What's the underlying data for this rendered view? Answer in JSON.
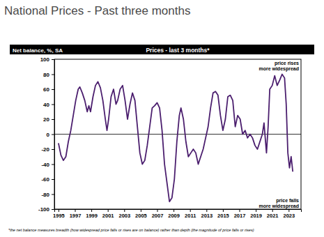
{
  "chart_data": {
    "type": "line",
    "heading": "National Prices - Past three months",
    "y_label": "Net balance, %, SA",
    "title": "Prices - last 3 months*",
    "annotations": [
      [
        "price rises",
        "more widespread"
      ],
      [
        "price falls",
        "more widespread"
      ]
    ],
    "footnote": "*the net balance measures breadth (how widespread price falls or rises are on balance) rather than depth (the magnitude of price falls or rises)",
    "color": "#4b1e6e",
    "grid": false,
    "xlim": [
      1994.5,
      2024.5
    ],
    "ylim": [
      -100,
      100
    ],
    "xticks": [
      1995,
      1997,
      1999,
      2001,
      2003,
      2005,
      2007,
      2009,
      2011,
      2013,
      2015,
      2017,
      2019,
      2021,
      2023
    ],
    "yticks": [
      -100,
      -80,
      -60,
      -40,
      -20,
      0,
      20,
      40,
      60,
      80,
      100
    ],
    "x": [
      1995.0,
      1995.3,
      1995.6,
      1995.9,
      1996.2,
      1996.5,
      1996.8,
      1997.1,
      1997.4,
      1997.6,
      1997.9,
      1998.2,
      1998.5,
      1998.7,
      1998.9,
      1999.2,
      1999.5,
      1999.8,
      2000.1,
      2000.4,
      2000.7,
      2000.9,
      2001.1,
      2001.4,
      2001.7,
      2002.0,
      2002.2,
      2002.5,
      2002.8,
      2003.1,
      2003.4,
      2003.7,
      2004.0,
      2004.3,
      2004.6,
      2004.9,
      2005.2,
      2005.5,
      2005.8,
      2006.1,
      2006.4,
      2006.7,
      2007.0,
      2007.3,
      2007.6,
      2007.9,
      2008.2,
      2008.5,
      2008.8,
      2009.1,
      2009.4,
      2009.7,
      2009.9,
      2010.2,
      2010.5,
      2010.8,
      2011.1,
      2011.4,
      2011.7,
      2012.0,
      2012.3,
      2012.6,
      2012.9,
      2013.2,
      2013.5,
      2013.8,
      2014.1,
      2014.4,
      2014.7,
      2015.0,
      2015.3,
      2015.6,
      2015.9,
      2016.2,
      2016.5,
      2016.8,
      2017.1,
      2017.4,
      2017.7,
      2018.0,
      2018.3,
      2018.6,
      2018.9,
      2019.2,
      2019.5,
      2019.8,
      2020.0,
      2020.3,
      2020.5,
      2020.7,
      2021.0,
      2021.3,
      2021.6,
      2021.9,
      2022.2,
      2022.5,
      2022.7,
      2022.9,
      2023.1,
      2023.3,
      2023.5
    ],
    "values": [
      -12,
      -28,
      -35,
      -30,
      -10,
      5,
      25,
      45,
      60,
      63,
      55,
      45,
      30,
      38,
      30,
      50,
      65,
      70,
      62,
      45,
      20,
      5,
      20,
      50,
      60,
      40,
      45,
      60,
      65,
      45,
      20,
      40,
      55,
      45,
      10,
      -25,
      -40,
      -35,
      -15,
      10,
      35,
      38,
      42,
      35,
      5,
      -40,
      -65,
      -90,
      -85,
      -60,
      -10,
      25,
      35,
      20,
      -10,
      -30,
      -25,
      -20,
      -25,
      -40,
      -30,
      -20,
      -5,
      10,
      35,
      55,
      57,
      52,
      25,
      5,
      20,
      50,
      52,
      45,
      10,
      25,
      20,
      0,
      5,
      -5,
      0,
      -5,
      -15,
      -20,
      -10,
      0,
      15,
      -25,
      10,
      60,
      65,
      78,
      65,
      72,
      80,
      75,
      40,
      -25,
      -45,
      -30,
      -50
    ]
  }
}
